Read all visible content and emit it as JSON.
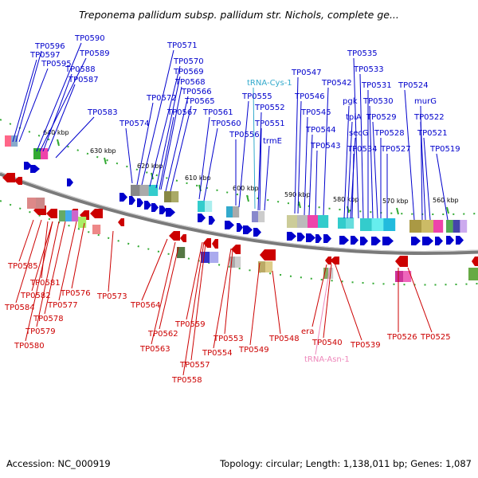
{
  "title": "Treponema pallidum subsp. pallidum str. Nichols, complete ge...",
  "footer": {
    "accession": "Accession: NC_000919",
    "summary": "Topology: circular; Length: 1,138,011 bp; Genes: 1,087"
  },
  "ticks": [
    "640 kbp",
    "630 kbp",
    "620 kbp",
    "610 kbp",
    "600 kbp",
    "590 kbp",
    "580 kbp",
    "570 kbp",
    "560 kbp"
  ],
  "colors": {
    "forward": "#0000cc",
    "reverse": "#cc0000",
    "trna": "#33aacc",
    "trna_reverse": "#ee88bb",
    "backbone": "#777777",
    "tick_mark": "#33aa33"
  },
  "labels_top": [
    "TP0597",
    "TP0596",
    "TP0595",
    "TP0590",
    "TP0589",
    "TP0588",
    "TP0587",
    "TP0583",
    "TP0574",
    "TP0571",
    "TP0570",
    "TP0569",
    "TP0568",
    "TP0572",
    "TP0566",
    "TP0565",
    "TP0567",
    "TP0561",
    "TP0560",
    "tRNA-Cys-1",
    "TP0555",
    "TP0552",
    "TP0551",
    "TP0556",
    "trmE",
    "TP0547",
    "TP0546",
    "TP0545",
    "TP0544",
    "TP0543",
    "TP0542",
    "TP0535",
    "TP0533",
    "TP0531",
    "TP0530",
    "TP0529",
    "TP0528",
    "TP0527",
    "TP0534",
    "pgk",
    "tpiA",
    "secG",
    "TP0524",
    "murG",
    "TP0522",
    "TP0521",
    "TP0519"
  ],
  "labels_bottom": [
    "TP0585",
    "TP0581",
    "TP0582",
    "TP0584",
    "TP0576",
    "TP0577",
    "TP0578",
    "TP0579",
    "TP0580",
    "TP0573",
    "TP0564",
    "TP0562",
    "TP0563",
    "TP0559",
    "TP0557",
    "TP0558",
    "TP0553",
    "TP0554",
    "TP0549",
    "TP0548",
    "era",
    "TP0540",
    "tRNA-Asn-1",
    "TP0539",
    "TP0526",
    "TP0525"
  ]
}
